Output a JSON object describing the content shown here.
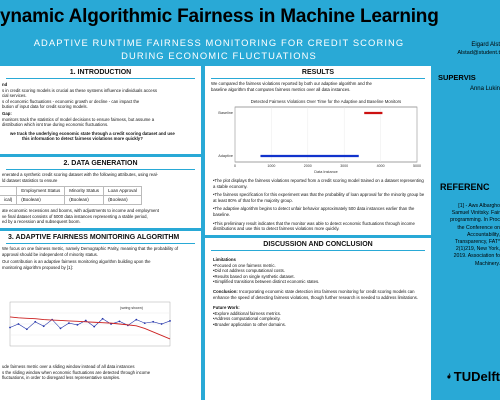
{
  "header": {
    "title": "ynamic Algorithmic Fairness in Machine Learning",
    "subtitle_line1": "ADAPTIVE RUNTIME FAIRNESS MONITORING FOR CREDIT SCORING",
    "subtitle_line2": "DURING ECONOMIC FLUCTUATIONS"
  },
  "authors": {
    "name": "Eigard Alst",
    "email": "Alstad@student.t",
    "supervisor_heading": "SUPERVIS",
    "supervisor_name": "Anna Lukin"
  },
  "references": {
    "heading": "REFERENC",
    "lines": [
      "[1] - Aws Albargho",
      "Samuel Vinitsky. Fair",
      "programming. In Proc",
      "the Conference on",
      "Accountability,",
      "Transparency, FAT*",
      "2(1)219, New York,",
      "2019. Association fo",
      "Machinery."
    ]
  },
  "logo": {
    "text": "TUDelft"
  },
  "introduction": {
    "heading": "1. INTRODUCTION",
    "l1": "nd",
    "l2": "s in credit scoring models is crucial as these systems influence individuals access",
    "l3": "cial services.",
    "l4": "s of economic fluctuations - economic growth or decline - can impact the",
    "l5": "bution of input data for credit scoring models.",
    "l6": "Gap:",
    "l7": "monitors track the statistics of model decisions to ensure fairness, but assume a",
    "l8": "distribution which isnt true during economic fluctuations.",
    "q1": "we track the underlying economic state through a credit scoring dataset and use",
    "q2": "this information to detect fairness violations more quickly?"
  },
  "data_gen": {
    "heading": "2. DATA GENERATION",
    "l1": "enerated a synthetic credit scoring dataset with the following attributes, using real-",
    "l2": "ld dataset statistics to ensure",
    "headers": [
      "Employment Status",
      "Minority Status",
      "Loan Approval"
    ],
    "row": [
      "(Boolean)",
      "(Boolean)",
      "(Boolean)"
    ],
    "row_lead": "ical)",
    "l3": "ate economic recessions and booms, with adjustments to income and employment",
    "l4": "ve final dataset consists of 5000 data instances representing a stable period,",
    "l5": "ed by a recession and subsequent boom."
  },
  "monitoring": {
    "heading": "3. ADAPTIVE FAIRNESS MONITORING ALGORITHM",
    "l1": "We focus on one fairness metric, namely Demographic Parity, meaning that the probability of",
    "l2": "approval should be independent of minority status.",
    "l3": "Our contribution is an adaptive fairness monitoring algorithm building upon the",
    "l4": "monitoring algorithm proposed by [1]:",
    "f1": "ude fairness metric over a sliding window instead of all data instances",
    "f2": "s the sliding window when economic fluctuations are detected through income",
    "f3": "fluctuations, in order to disregard less representative samples."
  },
  "results": {
    "heading": "RESULTS",
    "intro1": "We compared the fairness violations reported by both our adaptive algorithm and the",
    "intro2": "baseline algorithm that computes fairness metrics over all data instances.",
    "bullets": [
      "The plot displays the fairness violations reported from a credit scoring model trained on a dataset representing a stable economy.",
      "The fairness specification for this experiment was that the probability of loan approval for the minority group be at least 80% of that for the majority group.",
      "The adaptive algorithm begins to detect unfair behavior approximately 500 data instances earlier than the baseline.",
      "This preliminary result indicates that the monitor was able to detect economic fluctuations through income distributions and use this to detect fairness violations more quickly."
    ]
  },
  "discussion": {
    "heading": "DISCUSSION AND CONCLUSION",
    "limitations_heading": "Limitations",
    "limitations": [
      "Focused on one fairness metric.",
      "Did not address computational costs.",
      "Results based on single synthetic dataset.",
      "Simplified transitions between distinct economic states."
    ],
    "conclusion_label": "Conclusion:",
    "conclusion_text": "Incorporating economic state detection into fairness monitoring for credit scoring models can enhance the speed of detecting fairness violations, though further research is needed to address limitations.",
    "future_heading": "Future Work:",
    "future": [
      "Explore additional fairness metrics.",
      "Address computational complexity.",
      "Broader application to other domains."
    ]
  },
  "chart_data": [
    {
      "type": "scatter",
      "title": "Detected Fairness Violations Over Time for the Adaptive and Baseline Monitors",
      "categories": [
        "Baseline",
        "Adaptive"
      ],
      "series": [
        {
          "name": "Baseline",
          "color": "#cc1111",
          "segments": [
            [
              3550,
              4050
            ]
          ]
        },
        {
          "name": "Adaptive",
          "color": "#1133cc",
          "segments": [
            [
              700,
              3400
            ]
          ]
        }
      ],
      "xlim": [
        0,
        5000
      ],
      "xticks": [
        "0",
        "1000",
        "2000",
        "3000",
        "4000",
        "5000"
      ],
      "xlabel": "Data Instance"
    },
    {
      "type": "line",
      "title": "",
      "series": [
        {
          "name": "",
          "color": "#2233aa",
          "values": [
            0.42,
            0.5,
            0.38,
            0.55,
            0.45,
            0.6,
            0.4,
            0.52,
            0.48,
            0.58,
            0.44,
            0.62,
            0.5,
            0.56,
            0.47,
            0.6,
            0.52,
            0.55,
            0.5,
            0.57
          ]
        },
        {
          "name": "",
          "color": "#cc2222",
          "values": [
            0.66,
            0.64,
            0.63,
            0.62,
            0.6,
            0.59,
            0.58,
            0.57,
            0.56,
            0.55,
            0.54,
            0.53,
            0.52,
            0.5,
            0.48,
            0.46,
            0.4,
            0.32,
            0.24,
            0.16
          ]
        }
      ],
      "note": "(swing shown)"
    }
  ]
}
